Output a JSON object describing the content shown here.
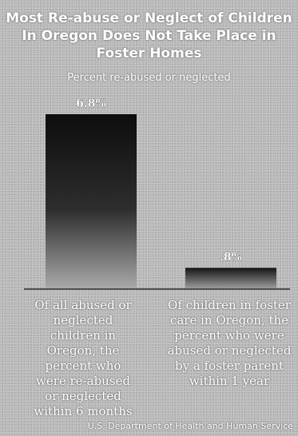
{
  "chart_data": {
    "type": "bar",
    "title": "Most Re-abuse or Neglect of Children In Oregon Does Not Take Place in Foster Homes",
    "subtitle": "Percent re-abused or neglected",
    "categories": [
      "Of all abused or neglected children in Oregon, the percent who were re-abused or neglected within 6 months",
      "Of children in foster care in Oregon, the percent who were abused or neglected by a foster parent within 1 year"
    ],
    "values": [
      6.8,
      0.8
    ],
    "value_labels": [
      "6.8%",
      ".8%"
    ],
    "ylim": [
      0,
      6.8
    ],
    "grid": false,
    "source": "U.S. Department of Health and Human Service"
  }
}
